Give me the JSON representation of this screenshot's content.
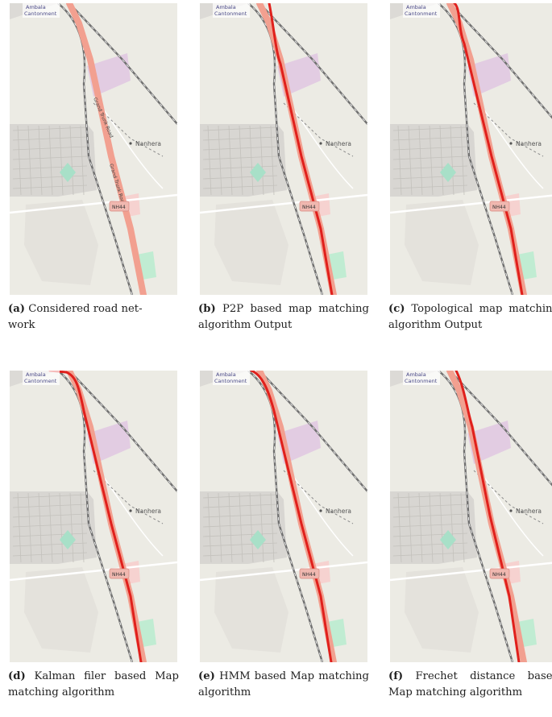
{
  "map_labels": {
    "cantonment_line1": "Ambala",
    "cantonment_line2": "Cantonment",
    "village": "Nanhera",
    "highway_shield": "NH44",
    "road_name_1": "Grand Trunk Road",
    "road_name_2": "Grand Trunk Road"
  },
  "panels": [
    {
      "letter": "(a)",
      "text": "Considered road network",
      "caption_html": "Considered road net-<br>work",
      "mode": "none"
    },
    {
      "letter": "(b)",
      "text": "P2P based map matching algorithm Output",
      "mode": "p2p"
    },
    {
      "letter": "(c)",
      "text": "Topological map matching algorithm Output",
      "mode": "topo"
    },
    {
      "letter": "(d)",
      "text": "Kalman filer based Map matching algorithm",
      "mode": "kalman"
    },
    {
      "letter": "(e)",
      "text": "HMM based Map matching algorithm",
      "mode": "hmm"
    },
    {
      "letter": "(f)",
      "text": "Frechet distance based Map matching algorithm",
      "mode": "frechet"
    }
  ],
  "colors": {
    "map_bg": "#ecebe4",
    "road_highlight": "#f2a090",
    "matched_path": "#e0201c",
    "railway": "#707070",
    "landuse_purple": "#e2cce2",
    "park_green": "#a8e0c8",
    "urban_gray": "#d8d6d2"
  }
}
